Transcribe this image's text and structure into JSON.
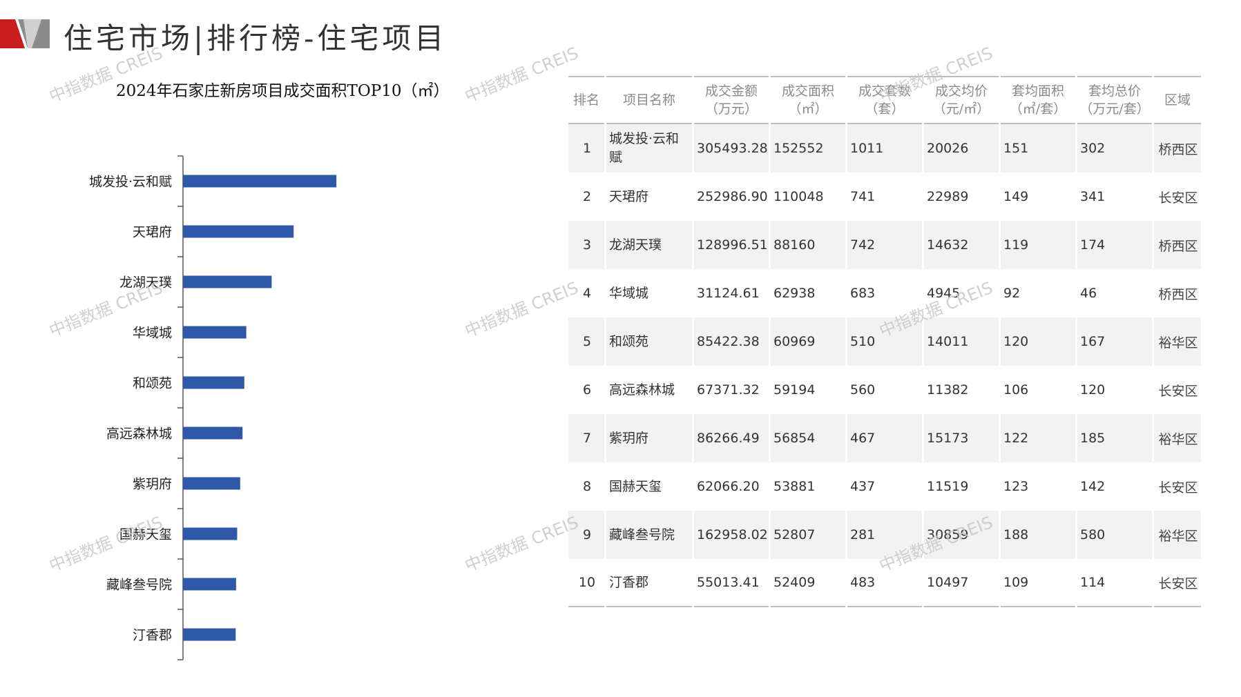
{
  "page": {
    "title": "住宅市场|排行榜-住宅项目",
    "watermark": "中指数据 CREIS"
  },
  "colors": {
    "bar": "#2f58a8",
    "logo_red": "#c81e1e",
    "logo_gray": "#8c8c8c"
  },
  "chart_data": {
    "type": "bar",
    "orientation": "horizontal",
    "title": "2024年石家庄新房项目成交面积TOP10（㎡）",
    "categories": [
      "城发投·云和赋",
      "天珺府",
      "龙湖天璞",
      "华域城",
      "和颂苑",
      "高远森林城",
      "紫玥府",
      "国赫天玺",
      "藏峰叁号院",
      "汀香郡"
    ],
    "series": [
      {
        "values": [
          152552,
          110048,
          88160,
          62938,
          60969,
          59194,
          56854,
          53881,
          52807,
          52409
        ]
      }
    ],
    "xlim": [
      0,
      340000
    ],
    "grid": false,
    "value_axis_visible": false
  },
  "table": {
    "headers": [
      "排名",
      "项目名称",
      "成交金额\n（万元）",
      "成交面积\n（㎡）",
      "成交套数\n（套）",
      "成交均价\n（元/㎡）",
      "套均面积\n（㎡/套）",
      "套均总价\n（万元/套）",
      "区域"
    ],
    "rows": [
      [
        "1",
        "城发投·云和赋",
        "305493.28",
        "152552",
        "1011",
        "20026",
        "151",
        "302",
        "桥西区"
      ],
      [
        "2",
        "天珺府",
        "252986.90",
        "110048",
        "741",
        "22989",
        "149",
        "341",
        "长安区"
      ],
      [
        "3",
        "龙湖天璞",
        "128996.51",
        "88160",
        "742",
        "14632",
        "119",
        "174",
        "桥西区"
      ],
      [
        "4",
        "华域城",
        "31124.61",
        "62938",
        "683",
        "4945",
        "92",
        "46",
        "桥西区"
      ],
      [
        "5",
        "和颂苑",
        "85422.38",
        "60969",
        "510",
        "14011",
        "120",
        "167",
        "裕华区"
      ],
      [
        "6",
        "高远森林城",
        "67371.32",
        "59194",
        "560",
        "11382",
        "106",
        "120",
        "长安区"
      ],
      [
        "7",
        "紫玥府",
        "86266.49",
        "56854",
        "467",
        "15173",
        "122",
        "185",
        "裕华区"
      ],
      [
        "8",
        "国赫天玺",
        "62066.20",
        "53881",
        "437",
        "11519",
        "123",
        "142",
        "长安区"
      ],
      [
        "9",
        "藏峰叁号院",
        "162958.02",
        "52807",
        "281",
        "30859",
        "188",
        "580",
        "裕华区"
      ],
      [
        "10",
        "汀香郡",
        "55013.41",
        "52409",
        "483",
        "10497",
        "109",
        "114",
        "长安区"
      ]
    ]
  }
}
